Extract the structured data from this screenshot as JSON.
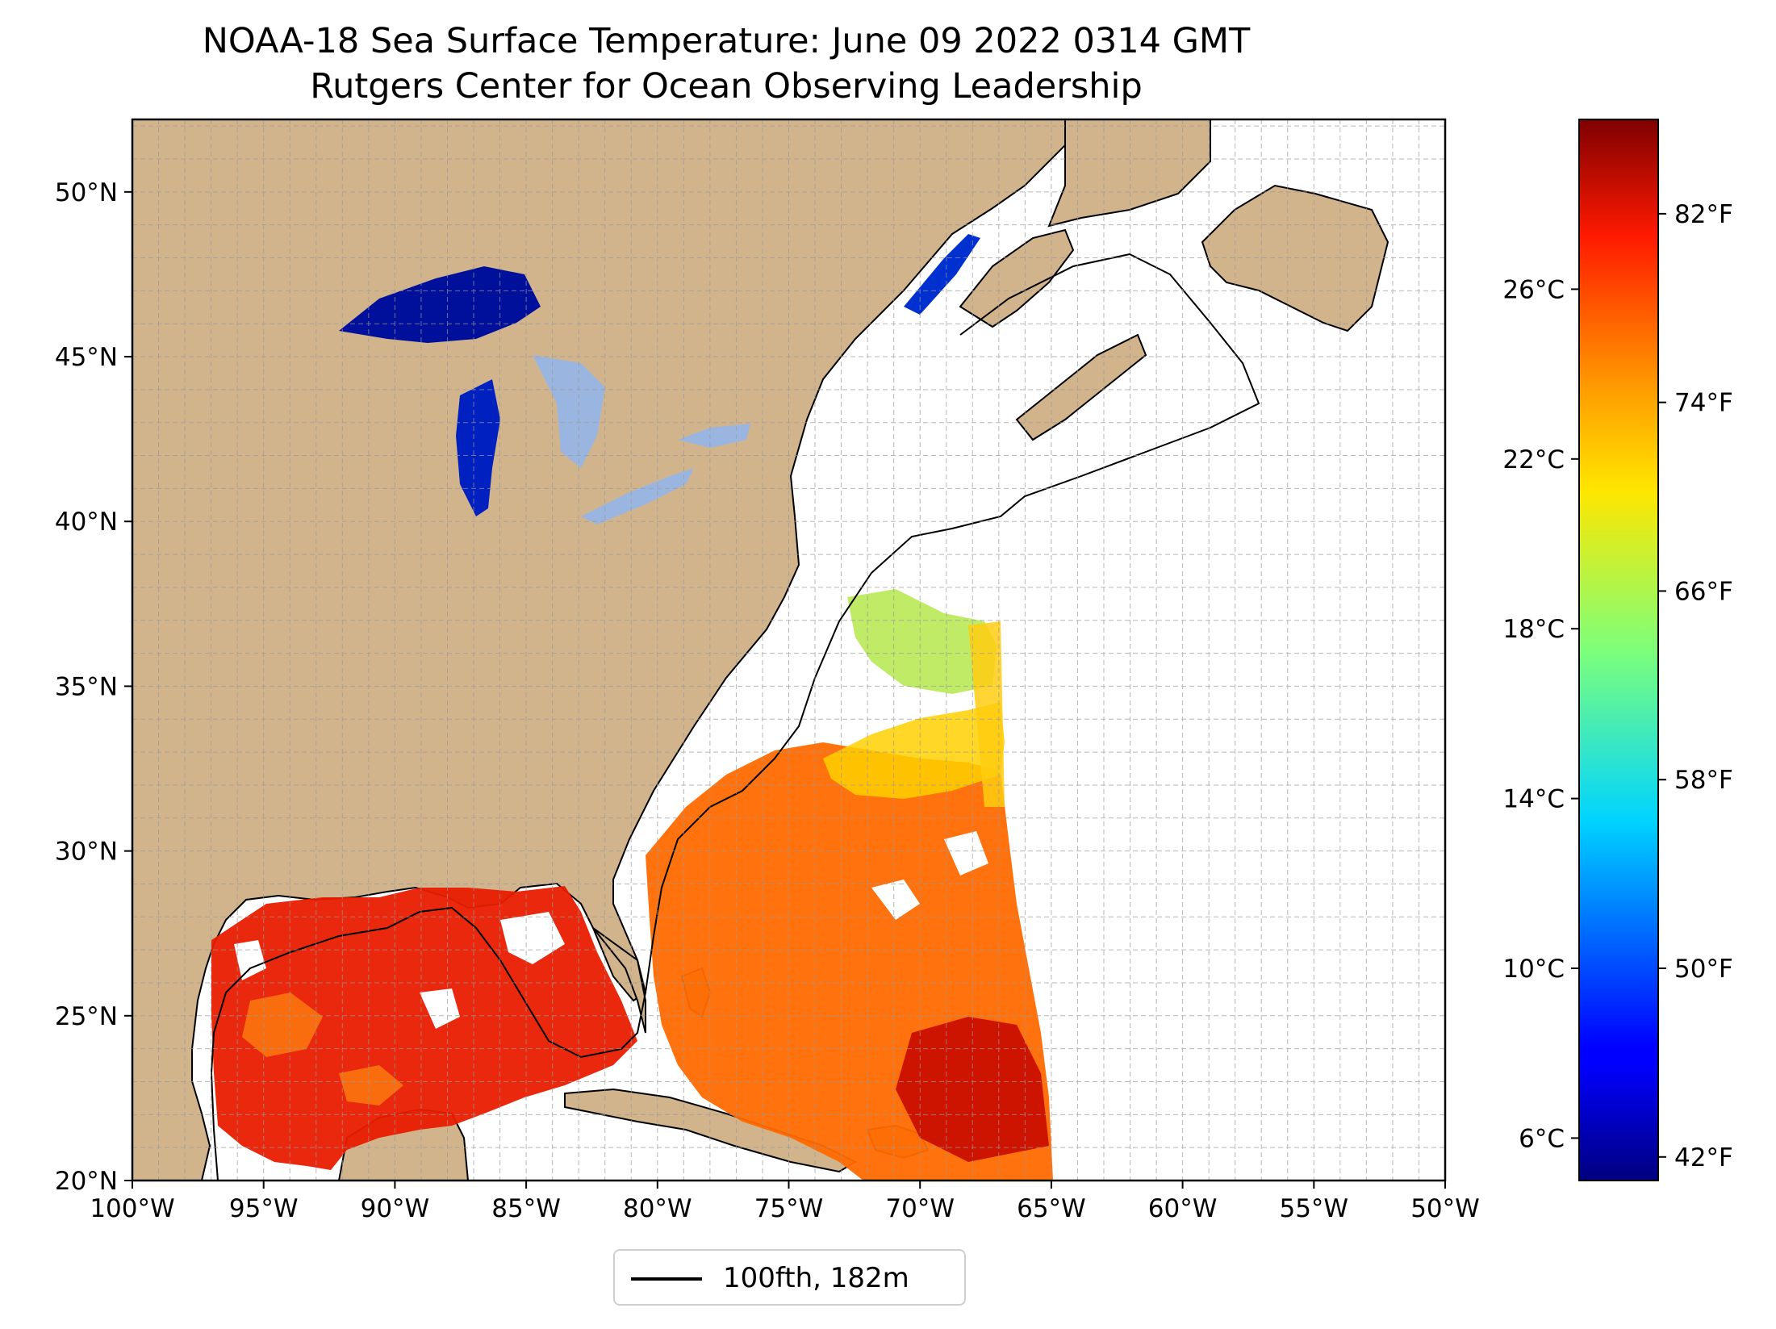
{
  "title": {
    "line1": "NOAA-18 Sea Surface Temperature: June 09 2022 0314 GMT",
    "line2": "Rutgers Center for Ocean Observing Leadership"
  },
  "map": {
    "lon_range": [
      -100,
      -50
    ],
    "lat_range": [
      20,
      52.2
    ],
    "gridlines": true,
    "lon_ticks": [
      "100°W",
      "95°W",
      "90°W",
      "85°W",
      "80°W",
      "75°W",
      "70°W",
      "65°W",
      "60°W",
      "55°W",
      "50°W"
    ],
    "lat_ticks": [
      "20°N",
      "25°N",
      "30°N",
      "35°N",
      "40°N",
      "45°N",
      "50°N"
    ],
    "colors": {
      "land": "#d2b48c",
      "ocean_no_data": "#ffffff",
      "lakes": "#9ab6e0",
      "borders": "#000000"
    }
  },
  "colorbar": {
    "colormap": "jet",
    "range_celsius": [
      5,
      30
    ],
    "celsius_ticks": [
      "6°C",
      "10°C",
      "14°C",
      "18°C",
      "22°C",
      "26°C"
    ],
    "fahrenheit_ticks": [
      "42°F",
      "50°F",
      "58°F",
      "66°F",
      "74°F",
      "82°F"
    ]
  },
  "legend": {
    "label": "100fth, 182m"
  }
}
